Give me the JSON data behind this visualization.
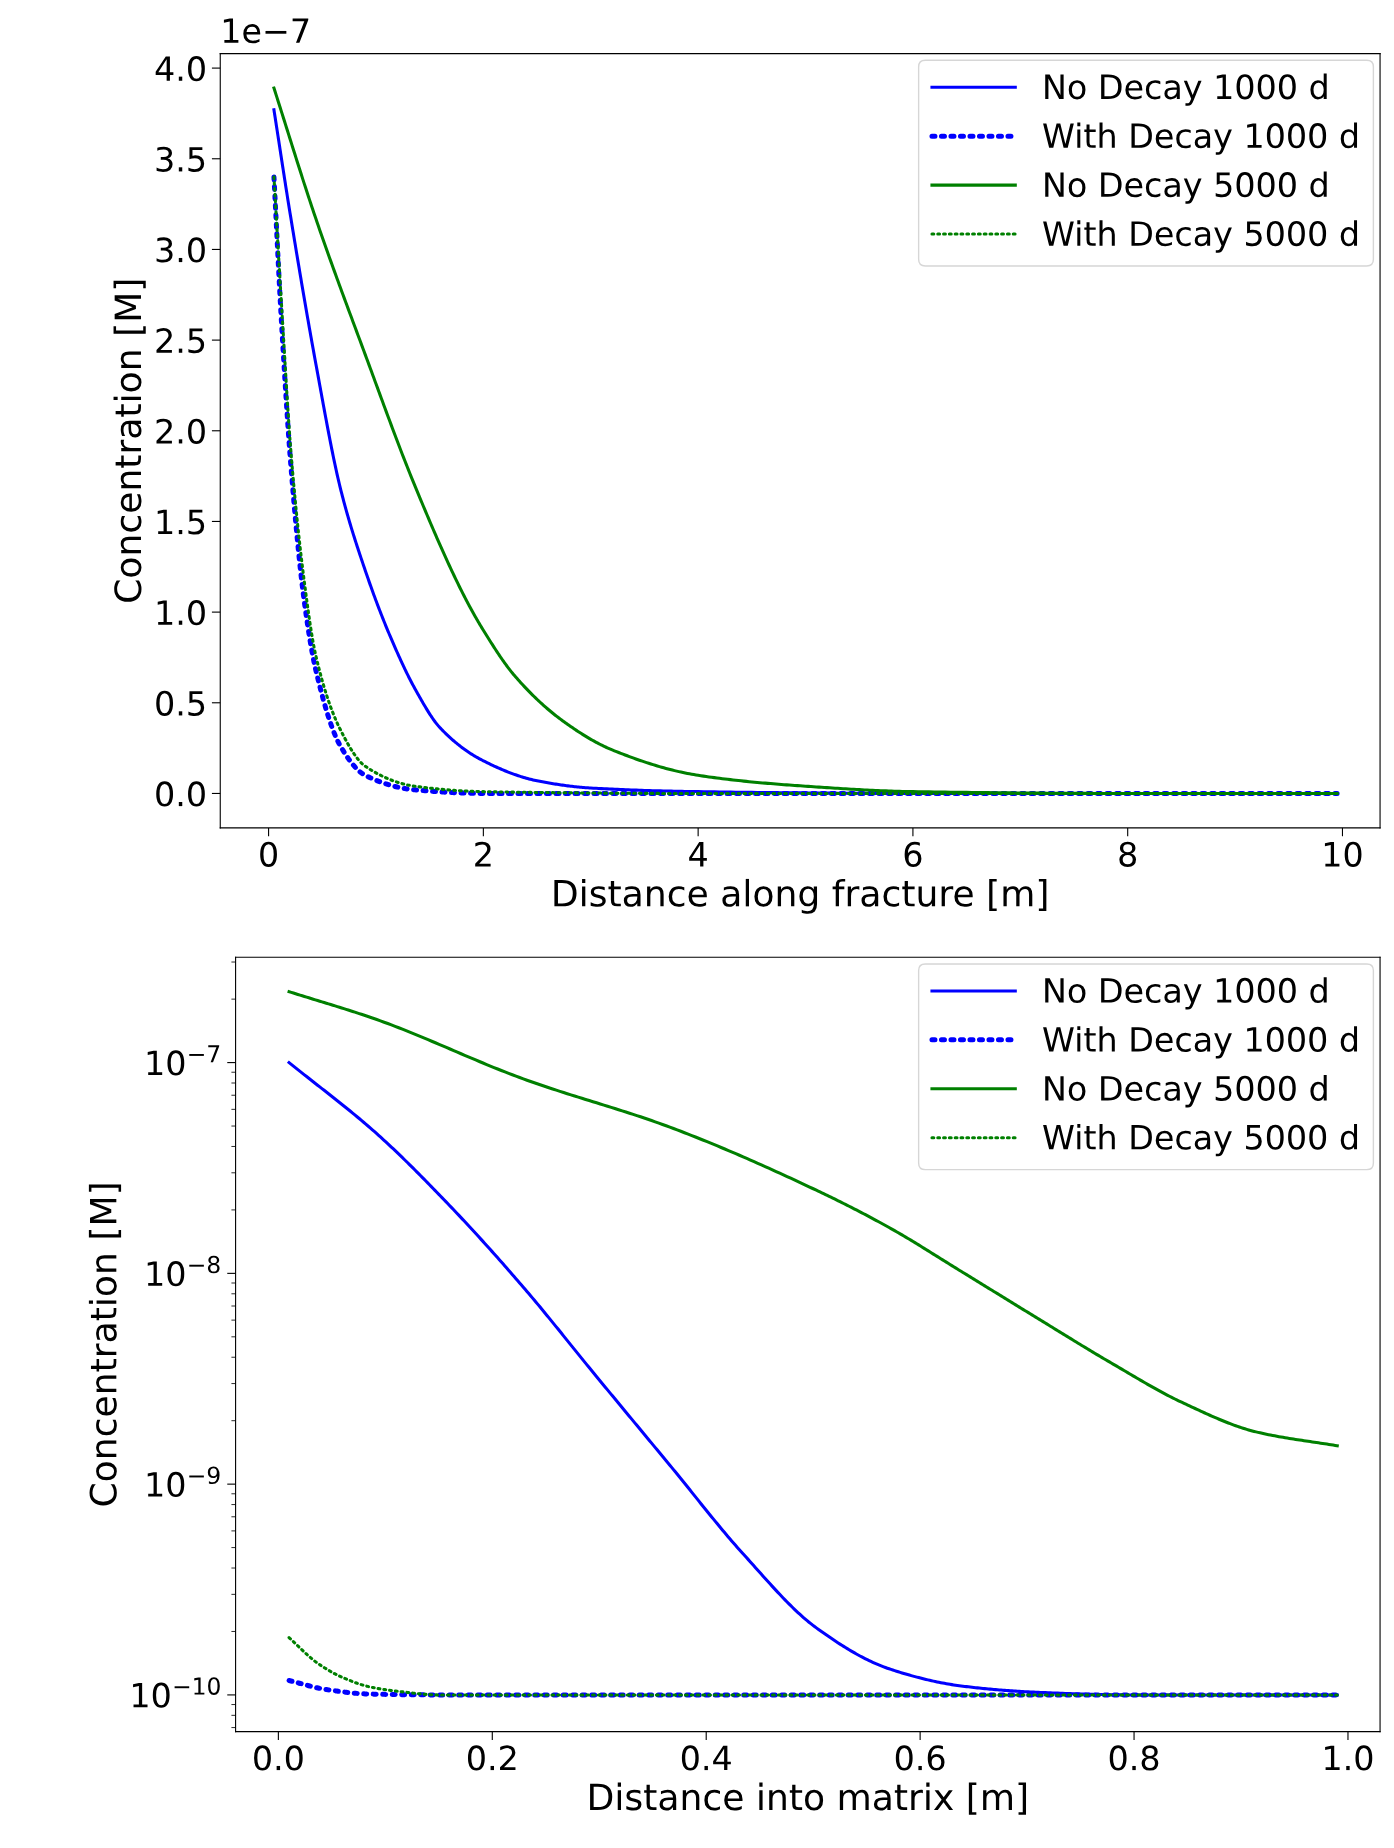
{
  "chart_data": [
    {
      "type": "line",
      "xlabel": "Distance along fracture [m]",
      "ylabel": "Concentration [M]",
      "annotations": [
        "1e−7"
      ],
      "xlim": [
        -0.45,
        10.35
      ],
      "xticks": [
        0,
        2,
        4,
        6,
        8,
        10
      ],
      "ylim": [
        -0.19,
        4.08
      ],
      "yticks": [
        {
          "value": 0,
          "label": "0.0"
        },
        {
          "value": 0.5,
          "label": "0.5"
        },
        {
          "value": 1,
          "label": "1.0"
        },
        {
          "value": 1.5,
          "label": "1.5"
        },
        {
          "value": 2,
          "label": "2.0"
        },
        {
          "value": 2.5,
          "label": "2.5"
        },
        {
          "value": 3,
          "label": "3.0"
        },
        {
          "value": 3.5,
          "label": "3.5"
        },
        {
          "value": 4,
          "label": "4.0"
        }
      ],
      "grid": false,
      "legend": "top right",
      "marker": "none",
      "series": [
        {
          "name": "No Decay 1000 d",
          "color": "#0000ff",
          "line_style": "solid",
          "x": [
            0.05,
            0.2,
            0.44,
            0.67,
            0.9,
            1.13,
            1.37,
            1.6,
            2.0,
            2.5,
            3.0,
            4.0,
            6.0,
            8.0,
            9.95
          ],
          "values": [
            3.77,
            3.2,
            2.37,
            1.68,
            1.23,
            0.87,
            0.57,
            0.36,
            0.18,
            0.07,
            0.03,
            0.01,
            0,
            0,
            0
          ]
        },
        {
          "name": "With Decay 1000 d",
          "color": "#0000ff",
          "line_style": "dotted",
          "x": [
            0.05,
            0.12,
            0.21,
            0.33,
            0.44,
            0.67,
            0.9,
            1.36,
            2.0,
            4.0,
            9.95
          ],
          "values": [
            3.4,
            2.6,
            1.79,
            1.07,
            0.68,
            0.26,
            0.1,
            0.02,
            0,
            0,
            0
          ]
        },
        {
          "name": "No Decay 5000 d",
          "color": "#008000",
          "line_style": "solid",
          "x": [
            0.05,
            0.44,
            0.9,
            1.36,
            1.82,
            2.0,
            2.29,
            2.74,
            3.2,
            4.0,
            5.0,
            6.0,
            8.0,
            9.95
          ],
          "values": [
            3.89,
            3.17,
            2.42,
            1.7,
            1.09,
            0.9,
            0.65,
            0.4,
            0.24,
            0.1,
            0.04,
            0.01,
            0,
            0
          ]
        },
        {
          "name": "With Decay 5000 d",
          "color": "#008000",
          "line_style": "dotted",
          "x": [
            0.05,
            0.12,
            0.21,
            0.33,
            0.44,
            0.67,
            0.9,
            1.36,
            2.0,
            4.0,
            9.95
          ],
          "values": [
            3.4,
            2.7,
            1.87,
            1.18,
            0.76,
            0.35,
            0.15,
            0.04,
            0.01,
            0,
            0
          ]
        }
      ]
    },
    {
      "type": "line",
      "xlabel": "Distance into matrix [m]",
      "ylabel": "Concentration [M]",
      "log": "y",
      "xlim": [
        -0.04,
        1.03
      ],
      "xticks": [
        {
          "value": 0,
          "label": "0.0"
        },
        {
          "value": 0.2,
          "label": "0.2"
        },
        {
          "value": 0.4,
          "label": "0.4"
        },
        {
          "value": 0.6,
          "label": "0.6"
        },
        {
          "value": 0.8,
          "label": "0.8"
        },
        {
          "value": 1,
          "label": "1.0"
        }
      ],
      "ylim": [
        6.7e-11,
        3.16e-07
      ],
      "yticks": [
        {
          "value": 1e-10,
          "label": "10$^{−10}$"
        },
        {
          "value": 1e-09,
          "label": "10$^{−9}$"
        },
        {
          "value": 1e-08,
          "label": "10$^{−8}$"
        },
        {
          "value": 1e-07,
          "label": "10$^{−7}$"
        }
      ],
      "grid": false,
      "legend": "top right",
      "marker": "none",
      "series": [
        {
          "name": "No Decay 1000 d",
          "color": "#0000ff",
          "line_style": "solid",
          "x": [
            0.01,
            0.092,
            0.16,
            0.229,
            0.297,
            0.366,
            0.434,
            0.503,
            0.571,
            0.64,
            0.708,
            0.8,
            0.99
          ],
          "values": [
            1e-07,
            4.6e-08,
            2.1e-08,
            8.6e-09,
            3.26e-09,
            1.23e-09,
            4.7e-10,
            2.08e-10,
            1.33e-10,
            1.1e-10,
            1.03e-10,
            1e-10,
            1e-10
          ]
        },
        {
          "name": "With Decay 1000 d",
          "color": "#0000ff",
          "line_style": "dotted",
          "x": [
            0.01,
            0.045,
            0.084,
            0.15,
            0.99
          ],
          "values": [
            1.17e-10,
            1.06e-10,
            1.01e-10,
            1e-10,
            1e-10
          ]
        },
        {
          "name": "No Decay 5000 d",
          "color": "#008000",
          "line_style": "solid",
          "x": [
            0.01,
            0.092,
            0.229,
            0.366,
            0.503,
            0.571,
            0.64,
            0.708,
            0.777,
            0.845,
            0.914,
            0.99
          ],
          "values": [
            2.17e-07,
            1.6e-07,
            8.37e-08,
            4.94e-08,
            2.48e-08,
            1.65e-08,
            1.01e-08,
            6.2e-09,
            3.8e-09,
            2.44e-09,
            1.77e-09,
            1.52e-09
          ]
        },
        {
          "name": "With Decay 5000 d",
          "color": "#008000",
          "line_style": "dotted",
          "x": [
            0.01,
            0.037,
            0.06,
            0.086,
            0.112,
            0.15,
            0.99
          ],
          "values": [
            1.87e-10,
            1.41e-10,
            1.21e-10,
            1.09e-10,
            1.04e-10,
            1e-10,
            1e-10
          ]
        }
      ]
    }
  ]
}
